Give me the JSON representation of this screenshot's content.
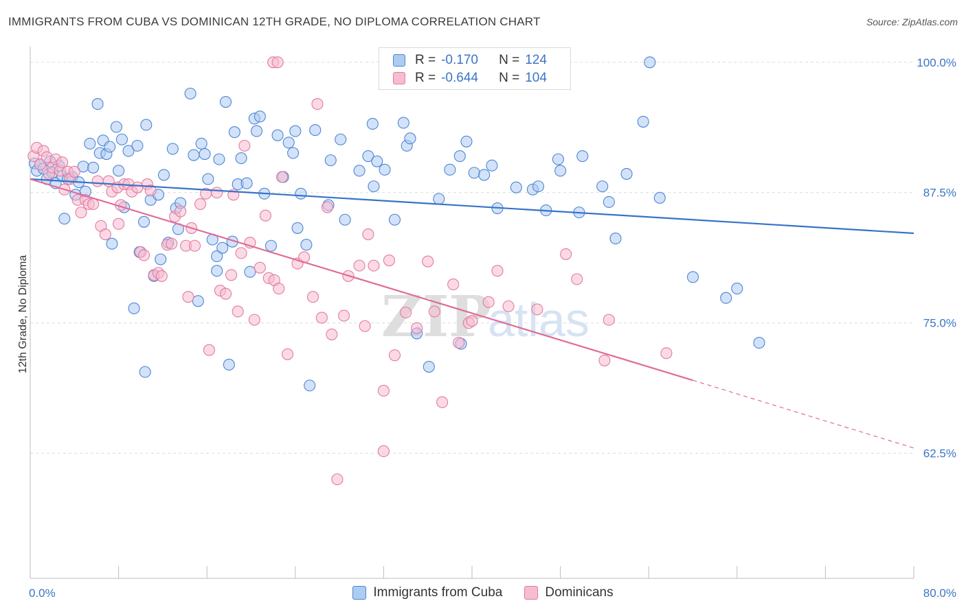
{
  "title": "IMMIGRANTS FROM CUBA VS DOMINICAN 12TH GRADE, NO DIPLOMA CORRELATION CHART",
  "source": "Source: ZipAtlas.com",
  "watermark": {
    "zip": "ZIP",
    "atlas": "atlas"
  },
  "legend_box": {
    "rows": [
      {
        "r_label": "R =",
        "r_value": "-0.170",
        "n_label": "N =",
        "n_value": "124"
      },
      {
        "r_label": "R =",
        "r_value": "-0.644",
        "n_label": "N =",
        "n_value": "104"
      }
    ]
  },
  "colors": {
    "cuba_fill": "#aecbf2",
    "cuba_stroke": "#4a86d4",
    "cuba_line": "#3673c9",
    "dom_fill": "#f7bcd0",
    "dom_stroke": "#e27aa0",
    "dom_line": "#e06b96",
    "grid": "#dcdcdc",
    "tick_label": "#3a75c4"
  },
  "chart_data": {
    "type": "scatter",
    "title": "IMMIGRANTS FROM CUBA VS DOMINICAN 12TH GRADE, NO DIPLOMA CORRELATION CHART",
    "xlabel": "",
    "ylabel": "12th Grade, No Diploma",
    "xlim": [
      0,
      80
    ],
    "ylim": [
      50.5,
      101.5
    ],
    "x_tick_labels": [
      {
        "value": 0,
        "label": "0.0%"
      },
      {
        "value": 80,
        "label": "80.0%"
      }
    ],
    "y_tick_labels": [
      {
        "value": 100,
        "label": "100.0%"
      },
      {
        "value": 87.5,
        "label": "87.5%"
      },
      {
        "value": 75,
        "label": "75.0%"
      },
      {
        "value": 62.5,
        "label": "62.5%"
      }
    ],
    "grid": true,
    "legend_position": "bottom-center",
    "series": [
      {
        "name": "Immigrants from Cuba",
        "r": -0.17,
        "n": 124,
        "trend": {
          "x": [
            0,
            80
          ],
          "y": [
            88.8,
            83.6
          ]
        },
        "points": [
          [
            0.4,
            90.3
          ],
          [
            0.6,
            89.6
          ],
          [
            0.9,
            90.2
          ],
          [
            1.2,
            89.8
          ],
          [
            1.5,
            88.8
          ],
          [
            1.8,
            90.5
          ],
          [
            2.0,
            89.4
          ],
          [
            2.3,
            88.4
          ],
          [
            2.6,
            90.1
          ],
          [
            2.9,
            89.1
          ],
          [
            3.1,
            85.0
          ],
          [
            3.4,
            88.8
          ],
          [
            3.8,
            89.0
          ],
          [
            4.1,
            87.3
          ],
          [
            4.4,
            88.5
          ],
          [
            4.8,
            90.0
          ],
          [
            5.0,
            87.6
          ],
          [
            5.4,
            92.2
          ],
          [
            5.7,
            89.9
          ],
          [
            6.1,
            96.0
          ],
          [
            6.3,
            91.3
          ],
          [
            6.6,
            92.5
          ],
          [
            6.9,
            91.2
          ],
          [
            7.2,
            91.9
          ],
          [
            7.4,
            82.6
          ],
          [
            7.8,
            93.8
          ],
          [
            8.0,
            89.6
          ],
          [
            8.3,
            92.6
          ],
          [
            8.5,
            86.1
          ],
          [
            8.9,
            91.5
          ],
          [
            9.4,
            76.4
          ],
          [
            9.7,
            92.0
          ],
          [
            9.9,
            81.8
          ],
          [
            10.3,
            84.7
          ],
          [
            10.5,
            94.0
          ],
          [
            10.9,
            86.8
          ],
          [
            11.2,
            79.5
          ],
          [
            11.6,
            87.3
          ],
          [
            11.8,
            81.1
          ],
          [
            12.1,
            89.2
          ],
          [
            12.5,
            82.7
          ],
          [
            12.9,
            91.7
          ],
          [
            13.2,
            86.0
          ],
          [
            13.4,
            84.0
          ],
          [
            13.6,
            86.5
          ],
          [
            14.5,
            97.0
          ],
          [
            14.8,
            91.1
          ],
          [
            15.2,
            77.1
          ],
          [
            15.5,
            92.2
          ],
          [
            15.8,
            91.2
          ],
          [
            16.1,
            88.8
          ],
          [
            16.5,
            83.0
          ],
          [
            16.9,
            81.4
          ],
          [
            17.1,
            90.7
          ],
          [
            17.4,
            82.2
          ],
          [
            17.7,
            96.2
          ],
          [
            18.3,
            82.8
          ],
          [
            18.5,
            93.3
          ],
          [
            18.8,
            88.3
          ],
          [
            19.1,
            90.8
          ],
          [
            19.6,
            88.4
          ],
          [
            19.9,
            79.9
          ],
          [
            20.3,
            94.6
          ],
          [
            20.5,
            93.4
          ],
          [
            20.8,
            94.8
          ],
          [
            21.2,
            87.4
          ],
          [
            21.8,
            82.4
          ],
          [
            22.4,
            93.0
          ],
          [
            22.9,
            89.0
          ],
          [
            23.4,
            92.3
          ],
          [
            23.8,
            91.3
          ],
          [
            24.0,
            93.4
          ],
          [
            24.2,
            84.1
          ],
          [
            24.5,
            87.4
          ],
          [
            25.0,
            82.5
          ],
          [
            25.8,
            93.5
          ],
          [
            27.0,
            86.3
          ],
          [
            27.2,
            90.6
          ],
          [
            28.1,
            92.6
          ],
          [
            28.5,
            84.9
          ],
          [
            29.8,
            89.6
          ],
          [
            30.6,
            91.0
          ],
          [
            31.0,
            94.1
          ],
          [
            31.1,
            88.1
          ],
          [
            31.4,
            90.5
          ],
          [
            32.1,
            89.7
          ],
          [
            33.0,
            84.9
          ],
          [
            33.8,
            94.2
          ],
          [
            34.1,
            92.0
          ],
          [
            34.4,
            92.7
          ],
          [
            35.0,
            74.0
          ],
          [
            36.1,
            70.8
          ],
          [
            37.0,
            86.9
          ],
          [
            38.0,
            89.7
          ],
          [
            38.9,
            91.0
          ],
          [
            39.0,
            73.0
          ],
          [
            39.5,
            92.4
          ],
          [
            40.2,
            89.4
          ],
          [
            41.1,
            89.2
          ],
          [
            41.8,
            90.1
          ],
          [
            42.3,
            86.0
          ],
          [
            44.0,
            88.0
          ],
          [
            45.5,
            87.8
          ],
          [
            46.0,
            88.1
          ],
          [
            46.7,
            85.8
          ],
          [
            47.8,
            90.7
          ],
          [
            48.0,
            89.6
          ],
          [
            49.7,
            85.6
          ],
          [
            50.0,
            91.0
          ],
          [
            51.8,
            88.1
          ],
          [
            52.4,
            86.6
          ],
          [
            53.0,
            83.1
          ],
          [
            54.0,
            89.3
          ],
          [
            55.5,
            94.3
          ],
          [
            56.1,
            100.0
          ],
          [
            57.0,
            87.0
          ],
          [
            60.0,
            79.4
          ],
          [
            63.0,
            77.4
          ],
          [
            64.0,
            78.3
          ],
          [
            66.0,
            73.1
          ],
          [
            18.0,
            71.0
          ],
          [
            25.3,
            69.0
          ],
          [
            10.4,
            70.3
          ],
          [
            16.9,
            80.0
          ]
        ]
      },
      {
        "name": "Dominicans",
        "r": -0.644,
        "n": 104,
        "trend": {
          "x": [
            0,
            60
          ],
          "y": [
            88.8,
            69.5
          ]
        },
        "dashed_extension": {
          "x": [
            60,
            80
          ],
          "y": [
            69.5,
            63.0
          ]
        },
        "points": [
          [
            0.3,
            91.0
          ],
          [
            0.6,
            91.8
          ],
          [
            0.9,
            90.2
          ],
          [
            1.2,
            91.5
          ],
          [
            1.5,
            90.9
          ],
          [
            1.7,
            89.3
          ],
          [
            2.0,
            89.9
          ],
          [
            2.3,
            90.7
          ],
          [
            2.7,
            89.6
          ],
          [
            2.9,
            90.4
          ],
          [
            3.1,
            87.8
          ],
          [
            3.4,
            89.5
          ],
          [
            3.6,
            88.8
          ],
          [
            4.0,
            89.5
          ],
          [
            4.3,
            86.8
          ],
          [
            4.6,
            85.6
          ],
          [
            5.0,
            86.8
          ],
          [
            5.3,
            86.4
          ],
          [
            5.7,
            86.4
          ],
          [
            6.1,
            88.6
          ],
          [
            6.4,
            84.3
          ],
          [
            6.8,
            83.5
          ],
          [
            7.1,
            88.6
          ],
          [
            7.4,
            87.6
          ],
          [
            7.9,
            88.0
          ],
          [
            8.2,
            86.3
          ],
          [
            8.5,
            88.3
          ],
          [
            8.9,
            88.3
          ],
          [
            9.2,
            87.6
          ],
          [
            9.7,
            88.0
          ],
          [
            10.0,
            81.8
          ],
          [
            10.3,
            81.5
          ],
          [
            10.6,
            88.3
          ],
          [
            10.9,
            87.7
          ],
          [
            11.2,
            79.6
          ],
          [
            11.6,
            79.8
          ],
          [
            11.9,
            79.5
          ],
          [
            12.4,
            82.5
          ],
          [
            12.8,
            82.6
          ],
          [
            13.1,
            85.2
          ],
          [
            13.6,
            85.7
          ],
          [
            14.1,
            82.4
          ],
          [
            14.3,
            77.5
          ],
          [
            14.6,
            84.1
          ],
          [
            14.9,
            82.4
          ],
          [
            15.4,
            86.4
          ],
          [
            15.9,
            87.4
          ],
          [
            16.2,
            72.4
          ],
          [
            16.9,
            87.5
          ],
          [
            17.2,
            78.1
          ],
          [
            17.7,
            77.8
          ],
          [
            18.2,
            79.6
          ],
          [
            18.4,
            87.3
          ],
          [
            18.8,
            76.1
          ],
          [
            19.1,
            81.7
          ],
          [
            19.4,
            92.0
          ],
          [
            19.9,
            82.7
          ],
          [
            20.3,
            75.3
          ],
          [
            20.8,
            80.3
          ],
          [
            21.3,
            85.3
          ],
          [
            21.6,
            79.3
          ],
          [
            22.1,
            79.1
          ],
          [
            22.5,
            78.3
          ],
          [
            22.8,
            89.0
          ],
          [
            23.3,
            72.0
          ],
          [
            24.2,
            80.7
          ],
          [
            24.8,
            81.3
          ],
          [
            25.6,
            77.5
          ],
          [
            26.0,
            96.0
          ],
          [
            26.4,
            75.5
          ],
          [
            26.9,
            86.1
          ],
          [
            27.3,
            73.9
          ],
          [
            27.8,
            60.0
          ],
          [
            28.4,
            75.7
          ],
          [
            28.8,
            79.5
          ],
          [
            29.8,
            80.5
          ],
          [
            30.3,
            74.7
          ],
          [
            30.6,
            83.5
          ],
          [
            31.1,
            80.5
          ],
          [
            32.0,
            68.5
          ],
          [
            32.5,
            81.0
          ],
          [
            33.0,
            71.9
          ],
          [
            34.0,
            76.0
          ],
          [
            35.0,
            74.5
          ],
          [
            36.0,
            80.9
          ],
          [
            36.6,
            76.1
          ],
          [
            37.3,
            67.4
          ],
          [
            38.3,
            78.7
          ],
          [
            38.8,
            73.1
          ],
          [
            39.7,
            75.0
          ],
          [
            40.0,
            75.2
          ],
          [
            41.5,
            77.0
          ],
          [
            42.3,
            80.0
          ],
          [
            43.3,
            76.6
          ],
          [
            45.9,
            76.3
          ],
          [
            48.5,
            81.6
          ],
          [
            49.5,
            79.2
          ],
          [
            52.0,
            71.4
          ],
          [
            52.4,
            75.3
          ],
          [
            57.6,
            72.1
          ],
          [
            22.0,
            100.0
          ],
          [
            22.4,
            100.0
          ],
          [
            32.0,
            62.7
          ],
          [
            8.0,
            84.5
          ]
        ]
      }
    ]
  },
  "bottom_legend": [
    {
      "label": "Immigrants from Cuba"
    },
    {
      "label": "Dominicans"
    }
  ]
}
